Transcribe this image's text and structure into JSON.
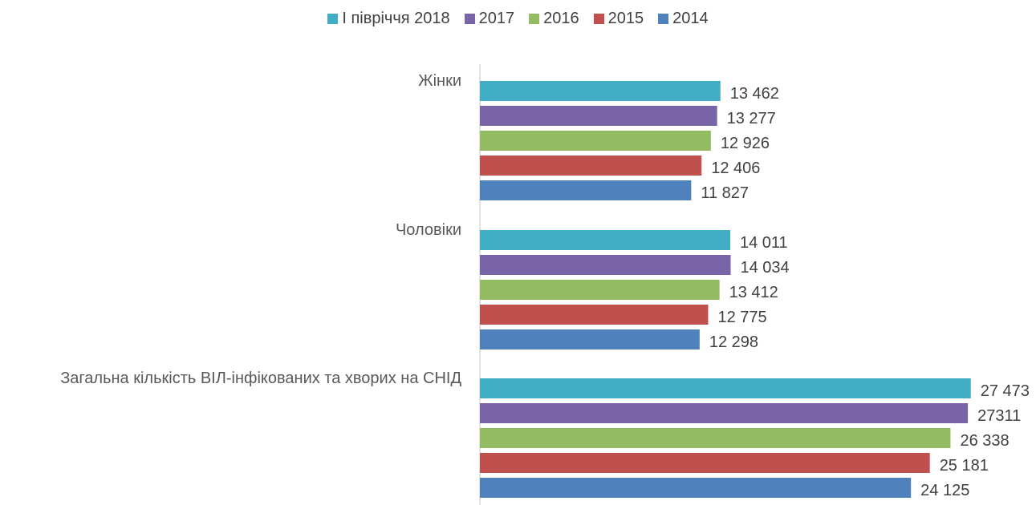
{
  "chart_data": {
    "type": "bar",
    "orientation": "horizontal",
    "categories": [
      "Жінки",
      "Чоловіки",
      "Загальна кількість ВІЛ-інфікованих та хворих на СНІД"
    ],
    "series": [
      {
        "name": "І півріччя 2018",
        "color": "#41adc4",
        "values": [
          13462,
          14011,
          27473
        ],
        "value_labels": [
          "13 462",
          "14 011",
          "27 473"
        ]
      },
      {
        "name": "2017",
        "color": "#7a64a8",
        "values": [
          13277,
          14034,
          27311
        ],
        "value_labels": [
          "13 277",
          "14 034",
          "27311"
        ]
      },
      {
        "name": "2016",
        "color": "#93bb62",
        "values": [
          12926,
          13412,
          26338
        ],
        "value_labels": [
          "12 926",
          "13 412",
          "26 338"
        ]
      },
      {
        "name": "2015",
        "color": "#c0504d",
        "values": [
          12406,
          12775,
          25181
        ],
        "value_labels": [
          "12 406",
          "12 775",
          "25 181"
        ]
      },
      {
        "name": "2014",
        "color": "#4f81bd",
        "values": [
          11827,
          12298,
          24125
        ],
        "value_labels": [
          "11 827",
          "12 298",
          "24 125"
        ]
      }
    ],
    "xlim": [
      0,
      30000
    ],
    "legend": "top"
  }
}
